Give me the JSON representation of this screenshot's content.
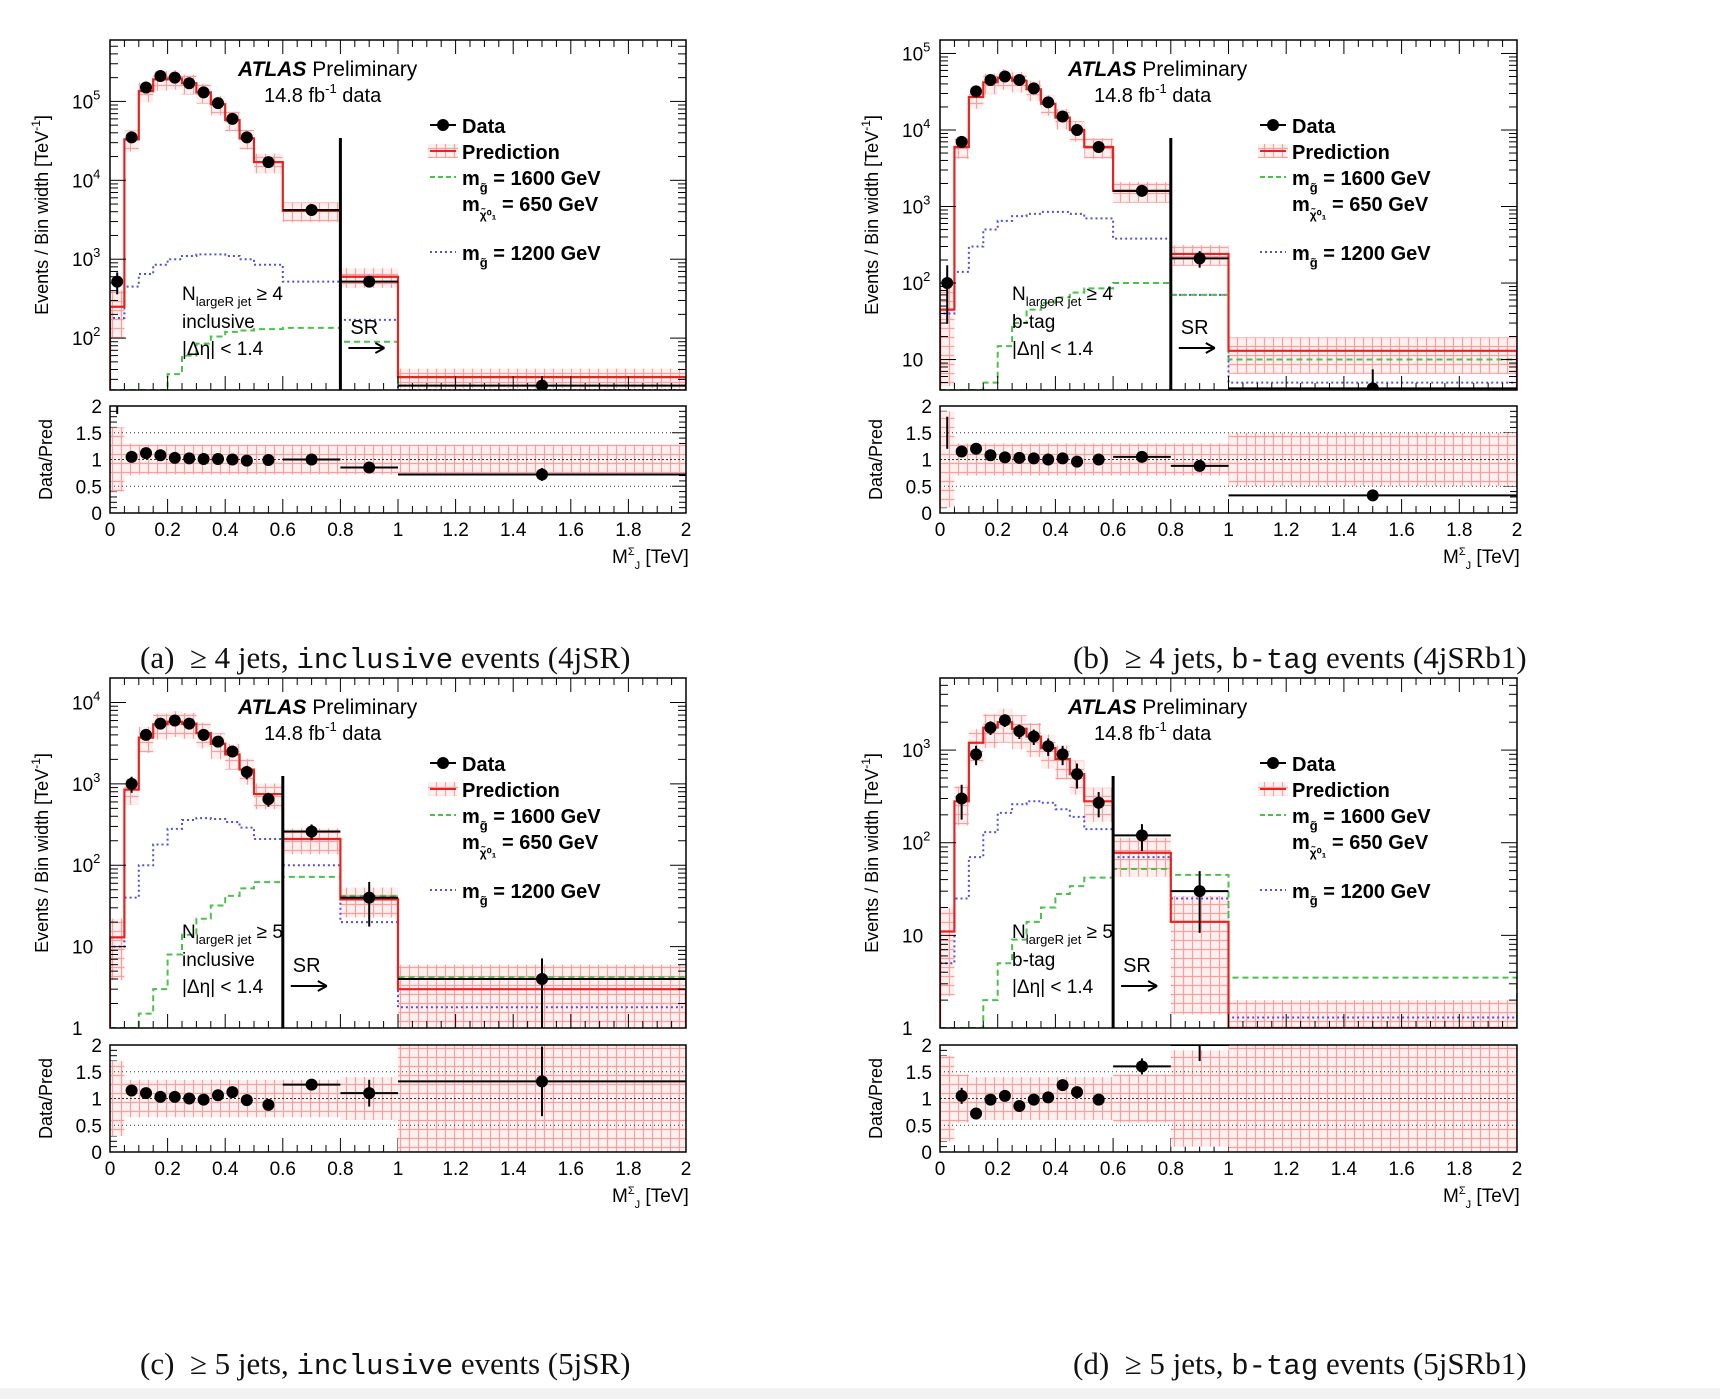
{
  "chart_data": [
    {
      "type": "line",
      "caption": {
        "letter": "(a)",
        "jets": "≥ 4 jets,",
        "mode": "inclusive",
        "rest": "events (4jSR)"
      },
      "atlas": "ATLAS",
      "atlas_tag": "Preliminary",
      "lumi": "14.8 fb",
      "lumi_exp": "-1",
      "lumi_suffix": "data",
      "ylabel": "Events / Bin width [TeV",
      "ylabel_exp": "-1",
      "ylabel_close": "]",
      "ratio_ylabel": "Data/Pred",
      "xlabel_main": "M",
      "xlabel_sup": "Σ",
      "xlabel_sub": "J",
      "xlabel_unit": "[TeV]",
      "xlim": [
        0,
        2
      ],
      "ylog": true,
      "ylim": [
        22,
        600000
      ],
      "ratio_ylim": [
        0,
        2
      ],
      "ytick_labels": [
        {
          "v": 100,
          "t": "10",
          "e": "2"
        },
        {
          "v": 1000,
          "t": "10",
          "e": "3"
        },
        {
          "v": 10000,
          "t": "10",
          "e": "4"
        },
        {
          "v": 100000,
          "t": "10",
          "e": "5"
        }
      ],
      "xtick_labels": [
        "0",
        "0.2",
        "0.4",
        "0.6",
        "0.8",
        "1",
        "1.2",
        "1.4",
        "1.6",
        "1.8",
        "2"
      ],
      "ratio_ytick_labels": [
        "0",
        "0.5",
        "1",
        "1.5",
        "2"
      ],
      "region": {
        "line1": "N",
        "line1_sub": "largeR jet",
        "line1_rest": " ≥ 4",
        "line2": "inclusive",
        "line3": "|Δη| < 1.4"
      },
      "sr_label": "SR",
      "sr_x": 0.8,
      "legend": [
        {
          "label": "Data",
          "style": "data"
        },
        {
          "label": "Prediction",
          "style": "prediction"
        },
        {
          "label": "m",
          "sub": "g̃",
          "rest": " = 1600 GeV",
          "label2": "m",
          "sub2": "χ̃⁰₁",
          "rest2": " = 650 GeV",
          "style": "green"
        },
        {
          "label": "m",
          "sub": "g̃",
          "rest": " = 1200 GeV",
          "style": "blue"
        }
      ],
      "bin_edges": [
        0,
        0.05,
        0.1,
        0.15,
        0.2,
        0.25,
        0.3,
        0.35,
        0.4,
        0.45,
        0.5,
        0.6,
        0.8,
        1.0,
        2.0
      ],
      "series": [
        {
          "name": "Data",
          "x": [
            0.025,
            0.075,
            0.125,
            0.175,
            0.225,
            0.275,
            0.325,
            0.375,
            0.425,
            0.475,
            0.55,
            0.7,
            0.9,
            1.5
          ],
          "values": [
            520,
            35000,
            150000,
            210000,
            200000,
            170000,
            130000,
            95000,
            60000,
            35000,
            17000,
            4200,
            520,
            25
          ]
        },
        {
          "name": "Prediction",
          "values": [
            250,
            33000,
            135000,
            190000,
            195000,
            170000,
            130000,
            92000,
            58000,
            34000,
            17000,
            4100,
            600,
            32
          ]
        },
        {
          "name": "m = 1600 GeV, m = 650 GeV",
          "values": [
            22,
            22,
            22,
            22,
            35,
            60,
            85,
            105,
            120,
            125,
            130,
            135,
            90,
            25
          ]
        },
        {
          "name": "m = 1200 GeV",
          "values": [
            180,
            450,
            650,
            850,
            1000,
            1100,
            1150,
            1150,
            1100,
            1000,
            850,
            520,
            170,
            22
          ]
        }
      ],
      "ratio": {
        "x": [
          0.075,
          0.125,
          0.175,
          0.225,
          0.275,
          0.325,
          0.375,
          0.425,
          0.475,
          0.55,
          0.7,
          0.9,
          1.5
        ],
        "values": [
          1.05,
          1.12,
          1.08,
          1.03,
          1.02,
          1.01,
          1.01,
          1.0,
          0.98,
          0.99,
          1.0,
          0.85,
          0.72
        ],
        "err": [
          0.04,
          0.03,
          0.03,
          0.03,
          0.03,
          0.03,
          0.03,
          0.03,
          0.03,
          0.03,
          0.03,
          0.05,
          0.12
        ],
        "extra": [
          {
            "x": 0.025,
            "v": 2.0,
            "e": 0.15
          }
        ]
      },
      "band_rel": [
        0.6,
        0.3,
        0.28,
        0.28,
        0.28,
        0.28,
        0.28,
        0.28,
        0.28,
        0.28,
        0.28,
        0.28,
        0.28,
        0.28
      ]
    },
    {
      "type": "line",
      "caption": {
        "letter": "(b)",
        "jets": "≥ 4 jets,",
        "mode": "b-tag",
        "rest": "events (4jSRb1)"
      },
      "atlas": "ATLAS",
      "atlas_tag": "Preliminary",
      "lumi": "14.8 fb",
      "lumi_exp": "-1",
      "lumi_suffix": "data",
      "ylabel": "Events / Bin width [TeV",
      "ylabel_exp": "-1",
      "ylabel_close": "]",
      "ratio_ylabel": "Data/Pred",
      "xlabel_main": "M",
      "xlabel_sup": "Σ",
      "xlabel_sub": "J",
      "xlabel_unit": "[TeV]",
      "xlim": [
        0,
        2
      ],
      "ylog": true,
      "ylim": [
        4,
        150000
      ],
      "ratio_ylim": [
        0,
        2
      ],
      "ytick_labels": [
        {
          "v": 10,
          "t": "10",
          "e": ""
        },
        {
          "v": 100,
          "t": "10",
          "e": "2"
        },
        {
          "v": 1000,
          "t": "10",
          "e": "3"
        },
        {
          "v": 10000,
          "t": "10",
          "e": "4"
        },
        {
          "v": 100000,
          "t": "10",
          "e": "5"
        }
      ],
      "xtick_labels": [
        "0",
        "0.2",
        "0.4",
        "0.6",
        "0.8",
        "1",
        "1.2",
        "1.4",
        "1.6",
        "1.8",
        "2"
      ],
      "ratio_ytick_labels": [
        "0",
        "0.5",
        "1",
        "1.5",
        "2"
      ],
      "region": {
        "line1": "N",
        "line1_sub": "largeR jet",
        "line1_rest": " ≥ 4",
        "line2": "b-tag",
        "line3": "|Δη| < 1.4"
      },
      "sr_label": "SR",
      "sr_x": 0.8,
      "legend": [
        {
          "label": "Data",
          "style": "data"
        },
        {
          "label": "Prediction",
          "style": "prediction"
        },
        {
          "label": "m",
          "sub": "g̃",
          "rest": " = 1600 GeV",
          "label2": "m",
          "sub2": "χ̃⁰₁",
          "rest2": " = 650 GeV",
          "style": "green"
        },
        {
          "label": "m",
          "sub": "g̃",
          "rest": " = 1200 GeV",
          "style": "blue"
        }
      ],
      "bin_edges": [
        0,
        0.05,
        0.1,
        0.15,
        0.2,
        0.25,
        0.3,
        0.35,
        0.4,
        0.45,
        0.5,
        0.6,
        0.8,
        1.0,
        2.0
      ],
      "series": [
        {
          "name": "Data",
          "x": [
            0.025,
            0.075,
            0.125,
            0.175,
            0.225,
            0.275,
            0.325,
            0.375,
            0.425,
            0.475,
            0.55,
            0.7,
            0.9,
            1.5
          ],
          "values": [
            100,
            7000,
            32000,
            45000,
            50000,
            45000,
            35000,
            23000,
            15000,
            10000,
            6000,
            1600,
            210,
            4.2
          ]
        },
        {
          "name": "Prediction",
          "values": [
            45,
            6000,
            27000,
            42000,
            48000,
            44000,
            34000,
            22000,
            14500,
            10000,
            6000,
            1600,
            240,
            13
          ]
        },
        {
          "name": "m = 1600 GeV, m = 650 GeV",
          "values": [
            4,
            4,
            4,
            5,
            15,
            30,
            45,
            55,
            65,
            75,
            85,
            100,
            70,
            10
          ]
        },
        {
          "name": "m = 1200 GeV",
          "values": [
            40,
            140,
            300,
            500,
            650,
            750,
            800,
            850,
            850,
            800,
            700,
            380,
            70,
            5
          ]
        }
      ],
      "ratio": {
        "x": [
          0.075,
          0.125,
          0.175,
          0.225,
          0.275,
          0.325,
          0.375,
          0.425,
          0.475,
          0.55,
          0.7,
          0.9,
          1.5
        ],
        "values": [
          1.15,
          1.2,
          1.08,
          1.04,
          1.03,
          1.02,
          1.0,
          1.02,
          0.96,
          1.0,
          1.05,
          0.88,
          0.33
        ],
        "err": [
          0.05,
          0.04,
          0.03,
          0.03,
          0.03,
          0.03,
          0.03,
          0.03,
          0.03,
          0.03,
          0.04,
          0.06,
          0.08
        ],
        "extra": [
          {
            "x": 0.025,
            "v": 1.5,
            "e": 0.3
          }
        ]
      },
      "band_rel": [
        0.9,
        0.3,
        0.3,
        0.3,
        0.3,
        0.3,
        0.3,
        0.3,
        0.3,
        0.3,
        0.3,
        0.3,
        0.3,
        0.5
      ]
    },
    {
      "type": "line",
      "caption": {
        "letter": "(c)",
        "jets": "≥ 5 jets,",
        "mode": "inclusive",
        "rest": "events (5jSR)"
      },
      "atlas": "ATLAS",
      "atlas_tag": "Preliminary",
      "lumi": "14.8 fb",
      "lumi_exp": "-1",
      "lumi_suffix": "data",
      "ylabel": "Events / Bin width [TeV",
      "ylabel_exp": "-1",
      "ylabel_close": "]",
      "ratio_ylabel": "Data/Pred",
      "xlabel_main": "M",
      "xlabel_sup": "Σ",
      "xlabel_sub": "J",
      "xlabel_unit": "[TeV]",
      "xlim": [
        0,
        2
      ],
      "ylog": true,
      "ylim": [
        1,
        20000
      ],
      "ratio_ylim": [
        0,
        2
      ],
      "ytick_labels": [
        {
          "v": 1,
          "t": "1",
          "e": ""
        },
        {
          "v": 10,
          "t": "10",
          "e": ""
        },
        {
          "v": 100,
          "t": "10",
          "e": "2"
        },
        {
          "v": 1000,
          "t": "10",
          "e": "3"
        },
        {
          "v": 10000,
          "t": "10",
          "e": "4"
        }
      ],
      "xtick_labels": [
        "0",
        "0.2",
        "0.4",
        "0.6",
        "0.8",
        "1",
        "1.2",
        "1.4",
        "1.6",
        "1.8",
        "2"
      ],
      "ratio_ytick_labels": [
        "0",
        "0.5",
        "1",
        "1.5",
        "2"
      ],
      "region": {
        "line1": "N",
        "line1_sub": "largeR jet",
        "line1_rest": " ≥ 5",
        "line2": "inclusive",
        "line3": "|Δη| < 1.4"
      },
      "sr_label": "SR",
      "sr_x": 0.6,
      "legend": [
        {
          "label": "Data",
          "style": "data"
        },
        {
          "label": "Prediction",
          "style": "prediction"
        },
        {
          "label": "m",
          "sub": "g̃",
          "rest": " = 1600 GeV",
          "label2": "m",
          "sub2": "χ̃⁰₁",
          "rest2": " = 650 GeV",
          "style": "green"
        },
        {
          "label": "m",
          "sub": "g̃",
          "rest": " = 1200 GeV",
          "style": "blue"
        }
      ],
      "bin_edges": [
        0,
        0.05,
        0.1,
        0.15,
        0.2,
        0.25,
        0.3,
        0.35,
        0.4,
        0.45,
        0.5,
        0.6,
        0.8,
        1.0,
        2.0
      ],
      "series": [
        {
          "name": "Data",
          "x": [
            0.075,
            0.125,
            0.175,
            0.225,
            0.275,
            0.325,
            0.375,
            0.425,
            0.475,
            0.55,
            0.7,
            0.9,
            1.5
          ],
          "values": [
            1000,
            4000,
            5500,
            6000,
            5500,
            4000,
            3300,
            2500,
            1400,
            650,
            260,
            40,
            4
          ]
        },
        {
          "name": "Prediction",
          "values": [
            13,
            850,
            3700,
            5400,
            5800,
            5500,
            4200,
            3100,
            2300,
            1500,
            750,
            210,
            38,
            3
          ]
        },
        {
          "name": "m = 1600 GeV, m = 650 GeV",
          "values": [
            1,
            1,
            1.5,
            3,
            8,
            14,
            22,
            32,
            42,
            52,
            62,
            72,
            42,
            4.2
          ]
        },
        {
          "name": "m = 1200 GeV",
          "values": [
            10,
            40,
            100,
            180,
            280,
            360,
            380,
            370,
            340,
            290,
            210,
            100,
            20,
            1.8
          ]
        }
      ],
      "ratio": {
        "x": [
          0.075,
          0.125,
          0.175,
          0.225,
          0.275,
          0.325,
          0.375,
          0.425,
          0.475,
          0.55,
          0.7,
          0.9,
          1.5
        ],
        "values": [
          1.15,
          1.1,
          1.03,
          1.03,
          1.0,
          0.98,
          1.06,
          1.12,
          0.97,
          0.88,
          1.26,
          1.1,
          1.32
        ],
        "err": [
          0.08,
          0.04,
          0.03,
          0.03,
          0.03,
          0.03,
          0.04,
          0.04,
          0.05,
          0.05,
          0.1,
          0.25,
          0.65
        ],
        "extra": []
      },
      "band_rel": [
        0.7,
        0.35,
        0.35,
        0.35,
        0.35,
        0.35,
        0.35,
        0.35,
        0.35,
        0.35,
        0.35,
        0.35,
        0.4,
        1.0
      ]
    },
    {
      "type": "line",
      "caption": {
        "letter": "(d)",
        "jets": "≥ 5 jets,",
        "mode": "b-tag",
        "rest": "events (5jSRb1)"
      },
      "atlas": "ATLAS",
      "atlas_tag": "Preliminary",
      "lumi": "14.8 fb",
      "lumi_exp": "-1",
      "lumi_suffix": "data",
      "ylabel": "Events / Bin width [TeV",
      "ylabel_exp": "-1",
      "ylabel_close": "]",
      "ratio_ylabel": "Data/Pred",
      "xlabel_main": "M",
      "xlabel_sup": "Σ",
      "xlabel_sub": "J",
      "xlabel_unit": "[TeV]",
      "xlim": [
        0,
        2
      ],
      "ylog": true,
      "ylim": [
        1,
        6000
      ],
      "ratio_ylim": [
        0,
        2
      ],
      "ytick_labels": [
        {
          "v": 1,
          "t": "1",
          "e": ""
        },
        {
          "v": 10,
          "t": "10",
          "e": ""
        },
        {
          "v": 100,
          "t": "10",
          "e": "2"
        },
        {
          "v": 1000,
          "t": "10",
          "e": "3"
        }
      ],
      "xtick_labels": [
        "0",
        "0.2",
        "0.4",
        "0.6",
        "0.8",
        "1",
        "1.2",
        "1.4",
        "1.6",
        "1.8",
        "2"
      ],
      "ratio_ytick_labels": [
        "0",
        "0.5",
        "1",
        "1.5",
        "2"
      ],
      "region": {
        "line1": "N",
        "line1_sub": "largeR jet",
        "line1_rest": " ≥ 5",
        "line2": "b-tag",
        "line3": "|Δη| < 1.4"
      },
      "sr_label": "SR",
      "sr_x": 0.6,
      "legend": [
        {
          "label": "Data",
          "style": "data"
        },
        {
          "label": "Prediction",
          "style": "prediction"
        },
        {
          "label": "m",
          "sub": "g̃",
          "rest": " = 1600 GeV",
          "label2": "m",
          "sub2": "χ̃⁰₁",
          "rest2": " = 650 GeV",
          "style": "green"
        },
        {
          "label": "m",
          "sub": "g̃",
          "rest": " = 1200 GeV",
          "style": "blue"
        }
      ],
      "bin_edges": [
        0,
        0.05,
        0.1,
        0.15,
        0.2,
        0.25,
        0.3,
        0.35,
        0.4,
        0.45,
        0.5,
        0.6,
        0.8,
        1.0,
        2.0
      ],
      "series": [
        {
          "name": "Data",
          "x": [
            0.075,
            0.125,
            0.175,
            0.225,
            0.275,
            0.325,
            0.375,
            0.425,
            0.475,
            0.55,
            0.7,
            0.9
          ],
          "values": [
            300,
            900,
            1750,
            2100,
            1600,
            1400,
            1100,
            900,
            550,
            270,
            120,
            30
          ]
        },
        {
          "name": "Prediction",
          "values": [
            11,
            280,
            1200,
            1750,
            2000,
            1700,
            1400,
            1050,
            800,
            550,
            280,
            78,
            14,
            1
          ]
        },
        {
          "name": "m = 1600 GeV, m = 650 GeV",
          "values": [
            1,
            1,
            1,
            2,
            5,
            9,
            14,
            20,
            28,
            34,
            42,
            52,
            45,
            3.5
          ]
        },
        {
          "name": "m = 1200 GeV",
          "values": [
            5,
            25,
            70,
            130,
            210,
            260,
            280,
            270,
            230,
            190,
            140,
            70,
            25,
            1.3
          ]
        }
      ],
      "ratio": {
        "x": [
          0.075,
          0.125,
          0.175,
          0.225,
          0.275,
          0.325,
          0.375,
          0.425,
          0.475,
          0.55,
          0.7,
          0.9
        ],
        "values": [
          1.05,
          0.72,
          0.98,
          1.05,
          0.86,
          0.98,
          1.02,
          1.25,
          1.12,
          0.98,
          1.6,
          2.0
        ],
        "err": [
          0.15,
          0.05,
          0.04,
          0.04,
          0.04,
          0.04,
          0.05,
          0.08,
          0.1,
          0.1,
          0.15,
          0.3
        ],
        "extra": []
      },
      "band_rel": [
        0.8,
        0.45,
        0.4,
        0.4,
        0.4,
        0.4,
        0.4,
        0.4,
        0.4,
        0.4,
        0.4,
        0.45,
        0.9,
        1.0
      ]
    }
  ]
}
